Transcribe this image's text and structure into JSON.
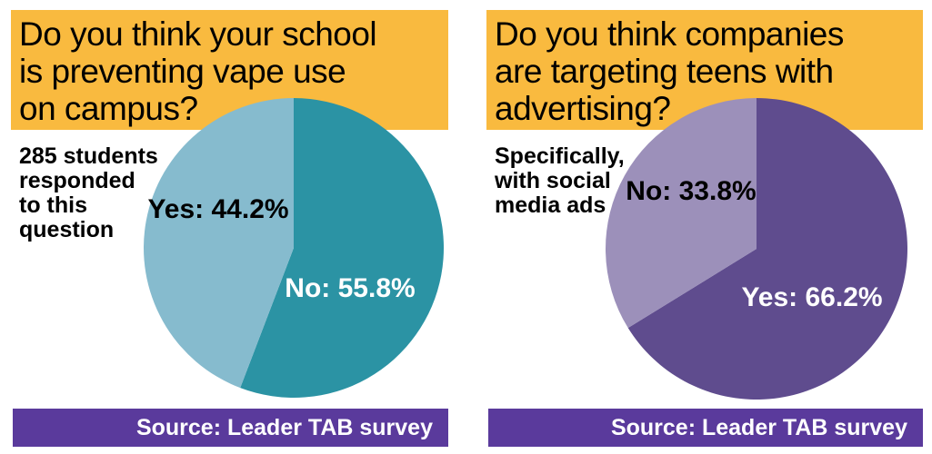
{
  "colors": {
    "header_bg": "#f9ba3f",
    "footer_bg": "#5a3a9c",
    "background": "#ffffff",
    "title_text": "#000000",
    "footer_text": "#ffffff"
  },
  "chart_data": [
    {
      "type": "pie",
      "title": "Do you think your school is preventing vape use on campus?",
      "title_lines": [
        "Do you think your school",
        "is preventing vape use",
        "on campus?"
      ],
      "note": "285 students responded to this question",
      "note_lines": [
        "285 students",
        "responded",
        "to this",
        "question"
      ],
      "source": "Source: Leader TAB survey",
      "direction": "clockwise-from-top",
      "legend_position": "labels-on-slices",
      "slices": [
        {
          "label": "No",
          "value": 55.8,
          "display": "No: 55.8%",
          "color": "#2b93a4",
          "text_color": "#ffffff",
          "label_offset": [
            62,
            45
          ]
        },
        {
          "label": "Yes",
          "value": 44.2,
          "display": "Yes: 44.2%",
          "color": "#86bbce",
          "text_color": "#000000",
          "label_offset": [
            -83,
            -42
          ]
        }
      ]
    },
    {
      "type": "pie",
      "title": "Do you think companies are targeting teens with advertising?",
      "title_lines": [
        "Do you think companies",
        "are targeting teens with",
        "advertising?"
      ],
      "note": "Specifically, with social media ads",
      "note_lines": [
        "Specifically,",
        "with social",
        "media ads"
      ],
      "source": "Source: Leader TAB survey",
      "direction": "clockwise-from-top",
      "legend_position": "labels-on-slices",
      "slices": [
        {
          "label": "Yes",
          "value": 66.2,
          "display": "Yes: 66.2%",
          "color": "#5f4c8e",
          "text_color": "#ffffff",
          "label_offset": [
            61,
            54
          ]
        },
        {
          "label": "No",
          "value": 33.8,
          "display": "No: 33.8%",
          "color": "#9c90ba",
          "text_color": "#000000",
          "label_offset": [
            -72,
            -63
          ]
        }
      ]
    }
  ]
}
